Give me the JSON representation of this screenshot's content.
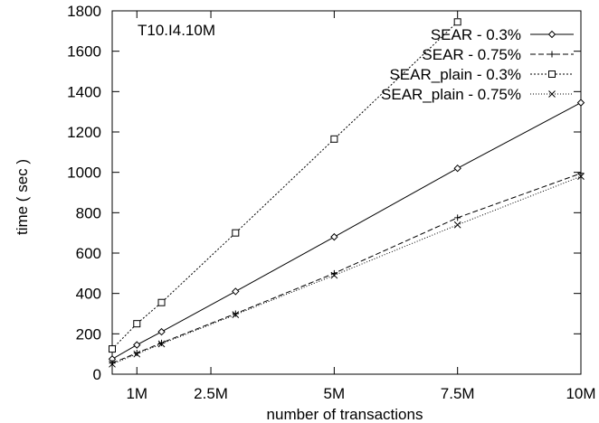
{
  "chart_data": {
    "type": "line",
    "annotation": "T10.I4.10M",
    "xlabel": "number of transactions",
    "ylabel": "time ( sec )",
    "xlim": [
      0.5,
      10
    ],
    "ylim": [
      0,
      1800
    ],
    "x_ticks": [
      {
        "value": 1,
        "label": "1M"
      },
      {
        "value": 2.5,
        "label": "2.5M"
      },
      {
        "value": 5,
        "label": "5M"
      },
      {
        "value": 7.5,
        "label": "7.5M"
      },
      {
        "value": 10,
        "label": "10M"
      }
    ],
    "y_ticks": [
      0,
      200,
      400,
      600,
      800,
      1000,
      1200,
      1400,
      1600,
      1800
    ],
    "legend_position": "top-right",
    "grid": false,
    "series": [
      {
        "name": "SEAR - 0.3%",
        "marker": "diamond",
        "dash": "",
        "x": [
          0.5,
          1,
          1.5,
          3,
          5,
          7.5,
          10
        ],
        "y": [
          75,
          145,
          210,
          410,
          680,
          1020,
          1345
        ]
      },
      {
        "name": "SEAR - 0.75%",
        "marker": "plus",
        "dash": "6,3",
        "x": [
          0.5,
          1,
          1.5,
          3,
          5,
          7.5,
          10
        ],
        "y": [
          55,
          105,
          155,
          300,
          500,
          775,
          995
        ]
      },
      {
        "name": "SEAR_plain - 0.3%",
        "marker": "square",
        "dash": "2,2",
        "x": [
          0.5,
          1,
          1.5,
          3,
          5,
          7.5
        ],
        "y": [
          125,
          250,
          355,
          700,
          1165,
          1745
        ]
      },
      {
        "name": "SEAR_plain - 0.75%",
        "marker": "cross",
        "dash": "1,2",
        "x": [
          0.5,
          1,
          1.5,
          3,
          5,
          7.5,
          10
        ],
        "y": [
          50,
          100,
          150,
          295,
          490,
          740,
          980
        ]
      }
    ]
  }
}
